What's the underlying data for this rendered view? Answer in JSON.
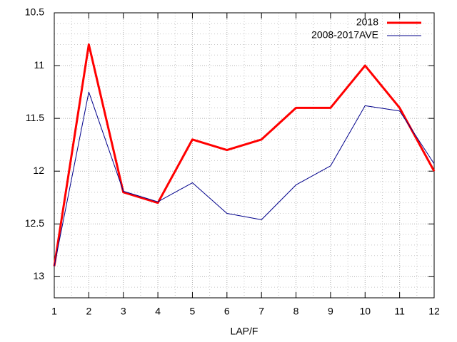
{
  "chart_data": {
    "type": "line",
    "xlabel": "LAP/F",
    "x": [
      1,
      2,
      3,
      4,
      5,
      6,
      7,
      8,
      9,
      10,
      11,
      12
    ],
    "series": [
      {
        "name": "2018",
        "color": "#ff0000",
        "values": [
          12.9,
          10.8,
          12.2,
          12.3,
          11.7,
          11.8,
          11.7,
          11.4,
          11.4,
          11.0,
          11.4,
          12.0
        ]
      },
      {
        "name": "2008-2017AVE",
        "color": "#00008b",
        "values": [
          12.9,
          11.25,
          12.19,
          12.29,
          12.11,
          12.4,
          12.46,
          12.13,
          11.95,
          11.38,
          11.43,
          11.93
        ]
      }
    ],
    "xlim": [
      1,
      12
    ],
    "xticks": [
      1,
      2,
      3,
      4,
      5,
      6,
      7,
      8,
      9,
      10,
      11,
      12
    ],
    "xminorticks": [
      1.5,
      2.5,
      3.5,
      4.5,
      5.5,
      6.5,
      7.5,
      8.5,
      9.5,
      10.5,
      11.5
    ],
    "ylim": [
      10.5,
      13.2
    ],
    "y_reversed": true,
    "yticks": [
      10.5,
      11,
      11.5,
      12,
      12.5,
      13
    ],
    "yminorticks": [
      10.6,
      10.7,
      10.8,
      10.9,
      11.1,
      11.2,
      11.3,
      11.4,
      11.6,
      11.7,
      11.8,
      11.9,
      12.1,
      12.2,
      12.3,
      12.4,
      12.6,
      12.7,
      12.8,
      12.9,
      13.1
    ],
    "grid": true,
    "legend": "upper right"
  }
}
